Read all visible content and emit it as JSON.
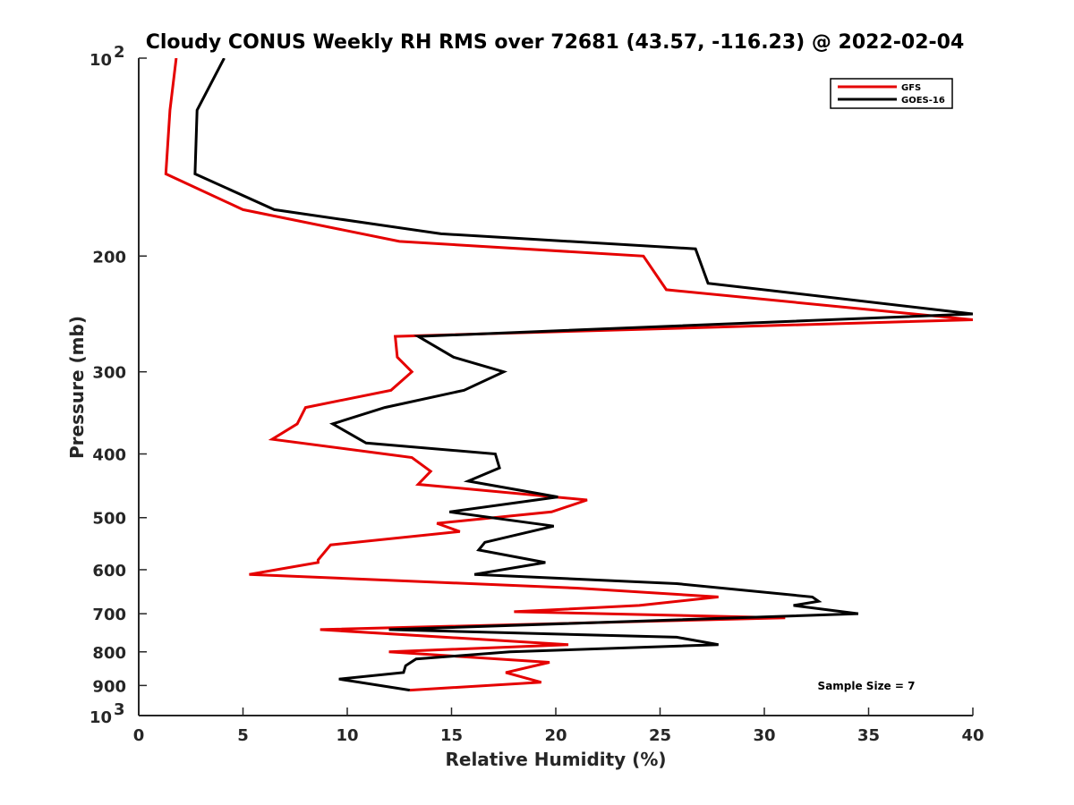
{
  "chart_data": {
    "type": "line",
    "title": "Cloudy CONUS Weekly RH RMS over 72681 (43.57, -116.23) @ 2022-02-04",
    "xlabel": "Relative Humidity (%)",
    "ylabel": "Pressure (mb)",
    "xlim": [
      0,
      40
    ],
    "ylim": [
      100,
      1000
    ],
    "yscale": "log",
    "yreversed": true,
    "grid": false,
    "legend_position": "top-right",
    "annotation": "Sample Size = 7",
    "x_ticks": [
      "0",
      "5",
      "10",
      "15",
      "20",
      "25",
      "30",
      "35",
      "40"
    ],
    "y_ticks": [
      {
        "value": 200,
        "label": "200"
      },
      {
        "value": 300,
        "label": "300"
      },
      {
        "value": 400,
        "label": "400"
      },
      {
        "value": 500,
        "label": "500"
      },
      {
        "value": 600,
        "label": "600"
      },
      {
        "value": 700,
        "label": "700"
      },
      {
        "value": 800,
        "label": "800"
      },
      {
        "value": 900,
        "label": "900"
      }
    ],
    "y_ticks_power": [
      {
        "value": 100,
        "base": "10",
        "exp": "2"
      },
      {
        "value": 1000,
        "base": "10",
        "exp": "3"
      }
    ],
    "series": [
      {
        "name": "GFS",
        "color": "#e50000",
        "x": [
          1.8,
          1.5,
          1.3,
          5.0,
          12.5,
          24.2,
          25.3,
          40.0,
          12.3,
          12.4,
          13.1,
          12.1,
          8.0,
          7.6,
          6.4,
          13.1,
          14.0,
          13.4,
          21.5,
          19.8,
          14.3,
          15.4,
          9.2,
          8.6,
          8.6,
          5.3,
          21.0,
          27.8,
          24.0,
          18.0,
          31.0,
          8.7,
          20.6,
          12.0,
          19.7,
          17.6,
          19.3,
          13.0
        ],
        "y": [
          100,
          120,
          150,
          170,
          190,
          200,
          225,
          250,
          265,
          285,
          300,
          320,
          340,
          360,
          380,
          405,
          425,
          445,
          470,
          490,
          510,
          525,
          550,
          580,
          585,
          610,
          640,
          660,
          680,
          695,
          710,
          740,
          780,
          800,
          830,
          860,
          890,
          915
        ]
      },
      {
        "name": "GOES-16",
        "color": "#000000",
        "x": [
          4.1,
          2.8,
          2.7,
          6.5,
          14.5,
          26.7,
          27.3,
          40.0,
          13.4,
          15.1,
          17.5,
          15.6,
          11.8,
          9.3,
          10.9,
          17.1,
          17.3,
          15.8,
          20.1,
          14.9,
          19.9,
          16.6,
          16.3,
          19.5,
          16.1,
          25.8,
          32.3,
          32.6,
          31.4,
          34.5,
          12.0,
          25.8,
          27.8,
          17.8,
          13.3,
          12.8,
          12.7,
          9.6,
          13.0
        ],
        "y": [
          100,
          120,
          150,
          170,
          185,
          195,
          220,
          245,
          265,
          285,
          300,
          320,
          340,
          360,
          385,
          400,
          420,
          440,
          465,
          490,
          515,
          545,
          560,
          585,
          610,
          630,
          660,
          670,
          680,
          700,
          740,
          760,
          780,
          800,
          820,
          840,
          860,
          880,
          915
        ]
      }
    ]
  }
}
